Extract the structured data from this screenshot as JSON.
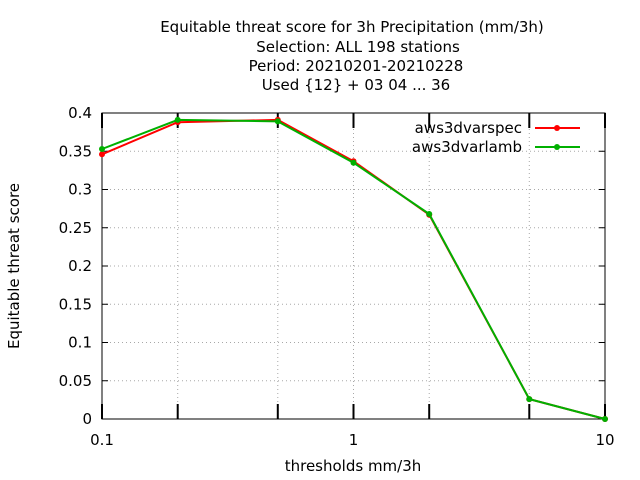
{
  "chart_data": {
    "type": "line",
    "title_lines": [
      "Equitable threat score  for 3h Precipitation (mm/3h)",
      "Selection: ALL    198 stations",
      "Period: 20210201-20210228",
      "Used {12} + 03 04 ... 36"
    ],
    "xlabel": "thresholds mm/3h",
    "ylabel": "Equitable threat score",
    "xscale": "log",
    "xlim": [
      0.1,
      10
    ],
    "ylim": [
      0,
      0.4
    ],
    "xticks": [
      0.1,
      1,
      10
    ],
    "xtick_labels": [
      "0.1",
      "1",
      "10"
    ],
    "yticks": [
      0,
      0.05,
      0.1,
      0.15,
      0.2,
      0.25,
      0.3,
      0.35,
      0.4
    ],
    "ytick_labels": [
      "0",
      "0.05",
      "0.1",
      "0.15",
      "0.2",
      "0.25",
      "0.3",
      "0.35",
      "0.4"
    ],
    "grid": true,
    "legend_position": "top-right",
    "x": [
      0.1,
      0.2,
      0.5,
      1,
      2,
      5,
      10
    ],
    "series": [
      {
        "name": "aws3dvarspec",
        "color": "#ff0000",
        "values": [
          0.346,
          0.388,
          0.391,
          0.337,
          0.267,
          0.026,
          0.0
        ]
      },
      {
        "name": "aws3dvarlamb",
        "color": "#00b000",
        "values": [
          0.353,
          0.391,
          0.389,
          0.335,
          0.268,
          0.026,
          0.0
        ]
      }
    ]
  }
}
